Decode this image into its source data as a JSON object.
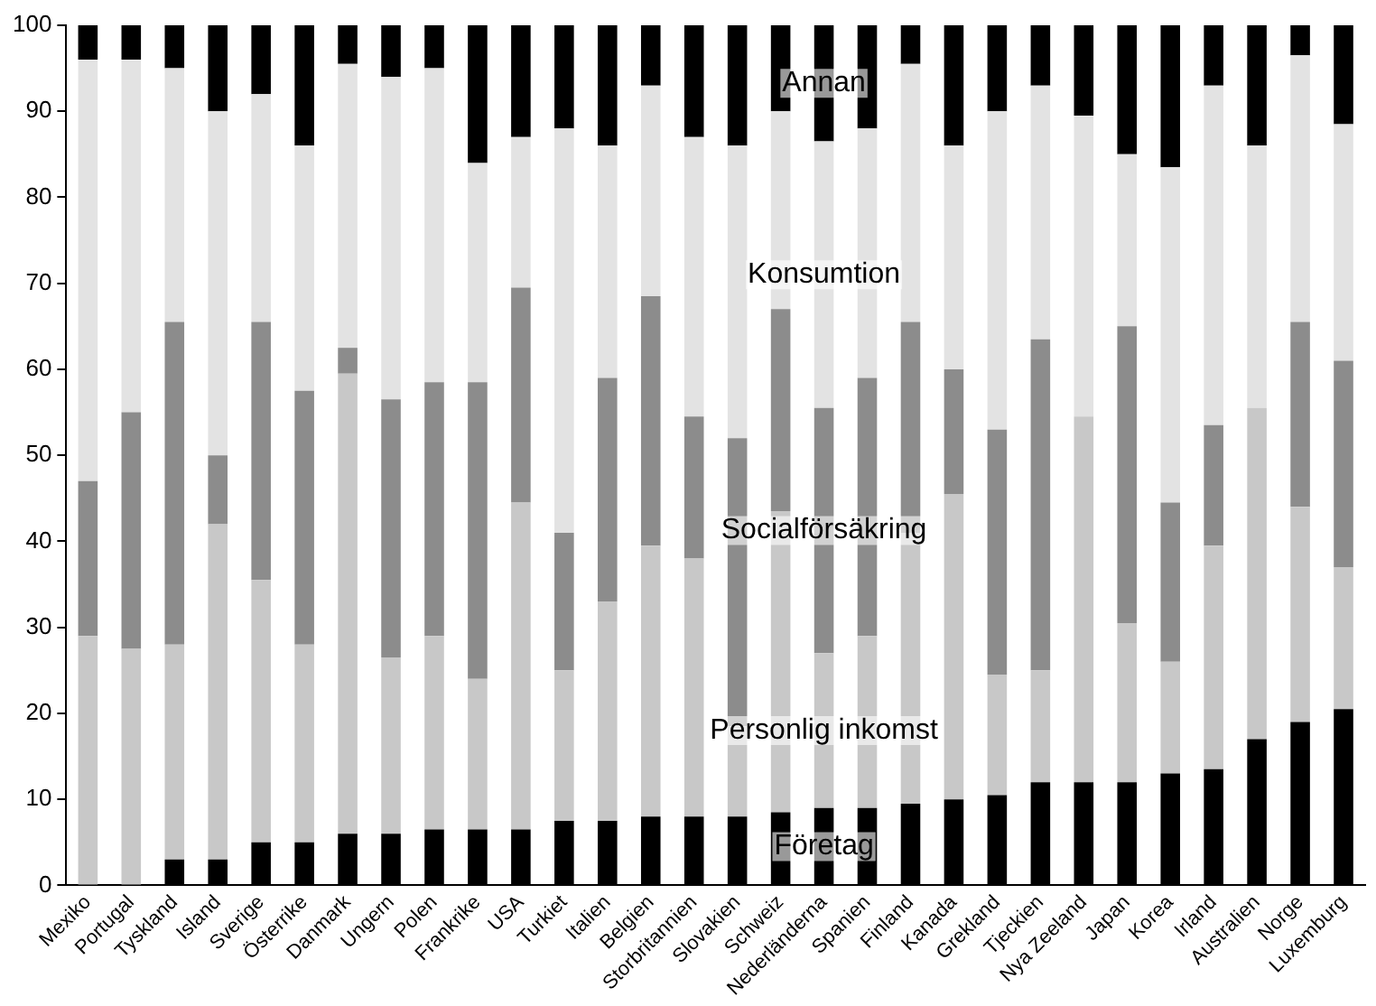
{
  "chart_data": {
    "type": "bar",
    "stacked": true,
    "legend": false,
    "grid": false,
    "categories": [
      "Mexiko",
      "Portugal",
      "Tyskland",
      "Island",
      "Sverige",
      "Österrike",
      "Danmark",
      "Ungern",
      "Polen",
      "Frankrike",
      "USA",
      "Turkiet",
      "Italien",
      "Belgien",
      "Storbritannien",
      "Slovakien",
      "Schweiz",
      "Nederländerna",
      "Spanien",
      "Finland",
      "Kanada",
      "Grekland",
      "Tjeckien",
      "Nya Zeeland",
      "Japan",
      "Korea",
      "Irland",
      "Australien",
      "Norge",
      "Luxemburg"
    ],
    "ylim": [
      0,
      100
    ],
    "yticks": [
      0,
      10,
      20,
      30,
      40,
      50,
      60,
      70,
      80,
      90,
      100
    ],
    "series": [
      {
        "name": "Företag",
        "color": "#000000",
        "values": [
          0,
          0,
          3,
          3,
          5,
          5,
          6,
          6,
          6.5,
          6.5,
          6.5,
          7.5,
          7.5,
          8,
          8,
          8,
          8.5,
          9,
          9,
          9.5,
          10,
          10.5,
          12,
          12,
          12,
          13,
          13.5,
          17,
          19,
          20.5
        ]
      },
      {
        "name": "Personlig inkomst",
        "color": "#c8c8c8",
        "values": [
          29,
          27.5,
          25,
          39,
          30.5,
          23,
          53.5,
          20.5,
          22.5,
          17.5,
          38,
          17.5,
          25.5,
          31.5,
          30,
          10.5,
          35,
          18,
          20,
          31.5,
          35.5,
          14,
          13,
          42.5,
          18.5,
          13,
          26,
          38.5,
          25,
          16.5
        ]
      },
      {
        "name": "Socialförsäkring",
        "color": "#8c8c8c",
        "values": [
          18,
          27.5,
          37.5,
          8,
          30,
          29.5,
          3,
          30,
          29.5,
          34.5,
          25,
          16,
          26,
          29,
          16.5,
          33.5,
          23.5,
          28.5,
          30,
          24.5,
          14.5,
          28.5,
          38.5,
          0,
          34.5,
          18.5,
          14,
          0,
          21.5,
          24
        ]
      },
      {
        "name": "Konsumtion",
        "color": "#e3e3e3",
        "values": [
          49,
          41,
          29.5,
          40,
          26.5,
          28.5,
          33,
          37.5,
          36.5,
          25.5,
          17.5,
          47,
          27,
          24.5,
          32.5,
          34,
          23,
          31,
          29,
          30,
          26,
          37,
          29.5,
          35,
          20,
          39,
          39.5,
          30.5,
          31,
          27.5
        ]
      },
      {
        "name": "Annan",
        "color": "#000000",
        "values": [
          4,
          4,
          5,
          10,
          8,
          14,
          4.5,
          6,
          5,
          16,
          13,
          12,
          14,
          7,
          13,
          14,
          10,
          13.5,
          12,
          4.5,
          14,
          10,
          7,
          10.5,
          15,
          16.5,
          7,
          14,
          3.5,
          11.5
        ]
      }
    ]
  }
}
